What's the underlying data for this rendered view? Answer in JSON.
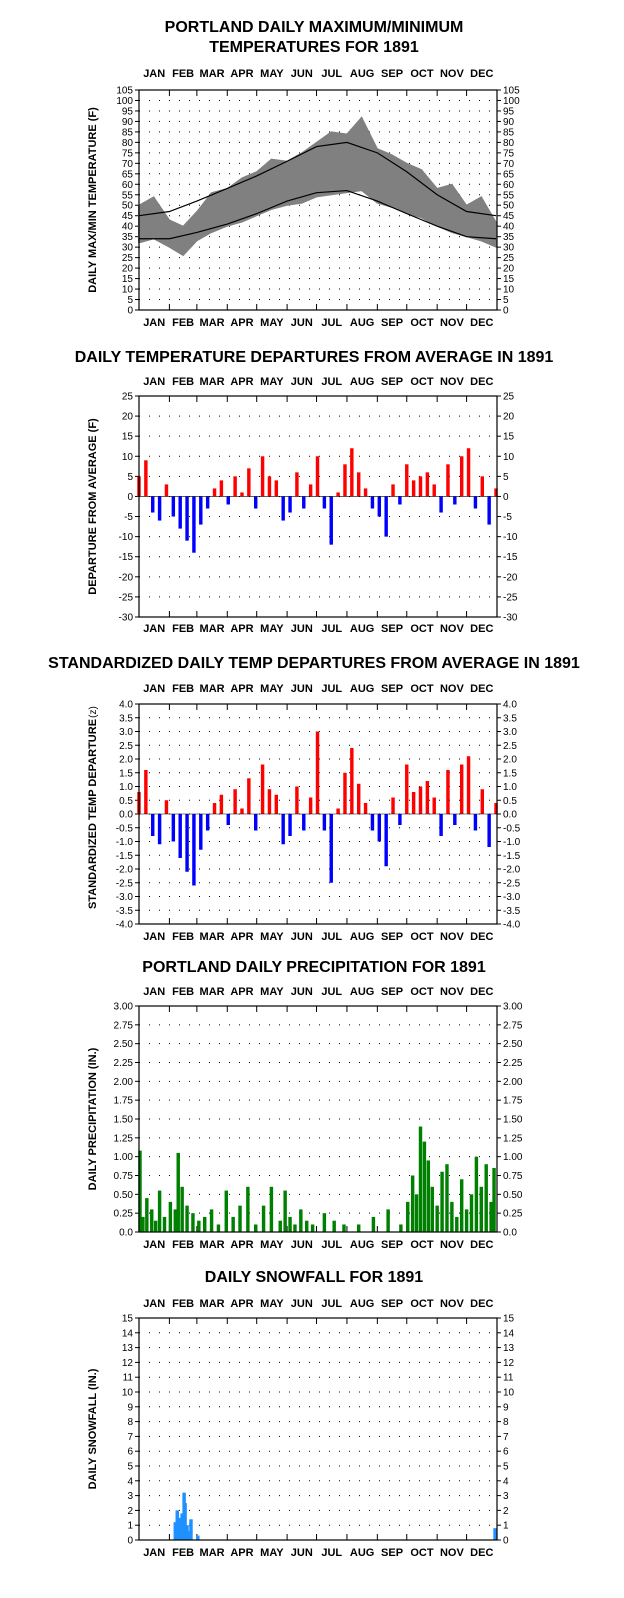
{
  "months": [
    "JAN",
    "FEB",
    "MAR",
    "APR",
    "MAY",
    "JUN",
    "JUL",
    "AUG",
    "SEP",
    "OCT",
    "NOV",
    "DEC"
  ],
  "chart_data": [
    {
      "id": "temp",
      "type": "line",
      "title_lines": [
        "PORTLAND DAILY MAXIMUM/MINIMUM",
        "TEMPERATURES FOR 1891"
      ],
      "ylabel": "DAILY MAX/MIN TEMPERATURE (F)",
      "ylim": [
        0,
        105
      ],
      "yticks": [
        0,
        5,
        10,
        15,
        20,
        25,
        30,
        35,
        40,
        45,
        50,
        55,
        60,
        65,
        70,
        75,
        80,
        85,
        90,
        95,
        100,
        105
      ],
      "grid": true,
      "colors": {
        "band": "#808080",
        "normals": "#000000"
      },
      "series": [
        {
          "kind": "normal_max",
          "x": [
            1,
            32,
            60,
            91,
            121,
            152,
            182,
            213,
            244,
            274,
            305,
            335,
            365
          ],
          "y": [
            45,
            47,
            52,
            58,
            64,
            71,
            78,
            80,
            75,
            66,
            55,
            47,
            45
          ]
        },
        {
          "kind": "normal_min",
          "x": [
            1,
            32,
            60,
            91,
            121,
            152,
            182,
            213,
            244,
            274,
            305,
            335,
            365
          ],
          "y": [
            34,
            34,
            37,
            41,
            46,
            52,
            56,
            57,
            52,
            46,
            40,
            35,
            34
          ]
        },
        {
          "kind": "observed_max",
          "x": [
            1,
            16,
            32,
            46,
            60,
            75,
            91,
            106,
            121,
            136,
            152,
            167,
            182,
            197,
            213,
            228,
            244,
            259,
            274,
            289,
            305,
            320,
            335,
            350,
            365
          ],
          "y": [
            50,
            54,
            43,
            40,
            47,
            56,
            58,
            63,
            66,
            72,
            71,
            75,
            80,
            85,
            84,
            92,
            77,
            74,
            70,
            67,
            58,
            60,
            50,
            54,
            42
          ]
        },
        {
          "kind": "observed_min",
          "x": [
            1,
            16,
            32,
            46,
            60,
            75,
            91,
            106,
            121,
            136,
            152,
            167,
            182,
            197,
            213,
            228,
            244,
            259,
            274,
            289,
            305,
            320,
            335,
            350,
            365
          ],
          "y": [
            32,
            34,
            30,
            26,
            33,
            37,
            40,
            42,
            45,
            48,
            50,
            51,
            54,
            55,
            56,
            57,
            51,
            49,
            46,
            44,
            40,
            37,
            35,
            33,
            30
          ]
        }
      ]
    },
    {
      "id": "dep",
      "type": "bar",
      "title_lines": [
        "DAILY TEMPERATURE DEPARTURES FROM AVERAGE IN 1891"
      ],
      "ylabel": "DEPARTURE FROM AVERAGE (F)",
      "ylim": [
        -30,
        25
      ],
      "yticks": [
        -30,
        -25,
        -20,
        -15,
        -10,
        -5,
        0,
        5,
        10,
        15,
        20,
        25
      ],
      "grid": true,
      "colors": {
        "positive": "#ff0000",
        "negative": "#0000ff"
      },
      "series": [
        {
          "name": "",
          "x": [
            1,
            8,
            15,
            22,
            29,
            36,
            43,
            50,
            57,
            64,
            71,
            78,
            85,
            92,
            99,
            106,
            113,
            120,
            127,
            134,
            141,
            148,
            155,
            162,
            169,
            176,
            183,
            190,
            197,
            204,
            211,
            218,
            225,
            232,
            239,
            246,
            253,
            260,
            267,
            274,
            281,
            288,
            295,
            302,
            309,
            316,
            323,
            330,
            337,
            344,
            351,
            358,
            365
          ],
          "y": [
            5,
            9,
            -4,
            -6,
            3,
            -5,
            -8,
            -11,
            -14,
            -7,
            -3,
            2,
            4,
            -2,
            5,
            1,
            7,
            -3,
            10,
            5,
            4,
            -6,
            -4,
            6,
            -3,
            3,
            10,
            -3,
            -12,
            1,
            8,
            12,
            6,
            2,
            -3,
            -5,
            -10,
            3,
            -2,
            8,
            4,
            5,
            6,
            3,
            -4,
            8,
            -2,
            10,
            12,
            -3,
            5,
            -7,
            2
          ]
        }
      ]
    },
    {
      "id": "std",
      "type": "bar",
      "title_lines": [
        "STANDARDIZED DAILY TEMP DEPARTURES FROM AVERAGE IN 1891"
      ],
      "ylabel": "STANDARDIZED TEMP DEPARTURE",
      "ylabel_suffix": "(z)",
      "ylim": [
        -4.0,
        4.0
      ],
      "yticks": [
        -4.0,
        -3.5,
        -3.0,
        -2.5,
        -2.0,
        -1.5,
        -1.0,
        -0.5,
        0.0,
        0.5,
        1.0,
        1.5,
        2.0,
        2.5,
        3.0,
        3.5,
        4.0
      ],
      "ytick_labels": [
        "-4.0",
        "-3.5",
        "-3.0",
        "-2.5",
        "-2.0",
        "-1.5",
        "-1.0",
        "-0.5",
        "0.0",
        "0.5",
        "1.0",
        "1.5",
        "2.0",
        "2.5",
        "3.0",
        "3.5",
        "4.0"
      ],
      "grid": true,
      "colors": {
        "positive": "#ff0000",
        "negative": "#0000ff"
      },
      "series": [
        {
          "name": "",
          "x": [
            1,
            8,
            15,
            22,
            29,
            36,
            43,
            50,
            57,
            64,
            71,
            78,
            85,
            92,
            99,
            106,
            113,
            120,
            127,
            134,
            141,
            148,
            155,
            162,
            169,
            176,
            183,
            190,
            197,
            204,
            211,
            218,
            225,
            232,
            239,
            246,
            253,
            260,
            267,
            274,
            281,
            288,
            295,
            302,
            309,
            316,
            323,
            330,
            337,
            344,
            351,
            358,
            365
          ],
          "y": [
            0.8,
            1.6,
            -0.8,
            -1.1,
            0.5,
            -1.0,
            -1.6,
            -2.1,
            -2.6,
            -1.3,
            -0.6,
            0.4,
            0.7,
            -0.4,
            0.9,
            0.2,
            1.3,
            -0.6,
            1.8,
            0.9,
            0.7,
            -1.1,
            -0.8,
            1.0,
            -0.6,
            0.6,
            3.0,
            -0.6,
            -2.5,
            0.2,
            1.5,
            2.4,
            1.1,
            0.4,
            -0.6,
            -1.0,
            -1.9,
            0.6,
            -0.4,
            1.8,
            0.8,
            1.0,
            1.2,
            0.6,
            -0.8,
            1.6,
            -0.4,
            1.8,
            2.1,
            -0.6,
            0.9,
            -1.2,
            0.4
          ]
        }
      ]
    },
    {
      "id": "precip",
      "type": "bar",
      "title_lines": [
        "PORTLAND DAILY PRECIPITATION FOR 1891"
      ],
      "ylabel": "DAILY PRECIPITATION (IN.)",
      "ylim": [
        0,
        3.0
      ],
      "yticks": [
        0,
        0.25,
        0.5,
        0.75,
        1.0,
        1.25,
        1.5,
        1.75,
        2.0,
        2.25,
        2.5,
        2.75,
        3.0
      ],
      "ytick_labels": [
        "0.0",
        "0.25",
        "0.50",
        "0.75",
        "1.00",
        "1.25",
        "1.50",
        "1.75",
        "2.00",
        "2.25",
        "2.50",
        "2.75",
        "3.00"
      ],
      "grid": true,
      "colors": {
        "bars": "#008000"
      },
      "series": [
        {
          "name": "",
          "x": [
            2,
            5,
            9,
            14,
            18,
            22,
            27,
            33,
            38,
            41,
            45,
            50,
            56,
            62,
            68,
            75,
            82,
            90,
            97,
            104,
            112,
            120,
            128,
            136,
            145,
            150,
            155,
            160,
            166,
            172,
            178,
            190,
            200,
            210,
            225,
            240,
            255,
            268,
            275,
            280,
            284,
            288,
            292,
            296,
            300,
            305,
            310,
            315,
            320,
            325,
            330,
            335,
            340,
            345,
            350,
            355,
            360,
            363
          ],
          "y": [
            1.08,
            0.2,
            0.45,
            0.3,
            0.15,
            0.55,
            0.2,
            0.4,
            0.3,
            1.05,
            0.6,
            0.35,
            0.25,
            0.15,
            0.2,
            0.3,
            0.1,
            0.55,
            0.2,
            0.35,
            0.6,
            0.1,
            0.35,
            0.6,
            0.15,
            0.55,
            0.2,
            0.1,
            0.3,
            0.15,
            0.1,
            0.25,
            0.15,
            0.1,
            0.1,
            0.2,
            0.3,
            0.1,
            0.4,
            0.75,
            0.5,
            1.4,
            1.2,
            0.95,
            0.6,
            0.35,
            0.8,
            0.9,
            0.4,
            0.2,
            0.7,
            0.3,
            0.5,
            1.0,
            0.6,
            0.9,
            0.4,
            0.85
          ]
        }
      ]
    },
    {
      "id": "snow",
      "type": "bar",
      "title_lines": [
        "DAILY SNOWFALL FOR 1891"
      ],
      "ylabel": "DAILY SNOWFALL (IN.)",
      "ylim": [
        0,
        15
      ],
      "yticks": [
        0,
        1,
        2,
        3,
        4,
        5,
        6,
        7,
        8,
        9,
        10,
        11,
        12,
        13,
        14,
        15
      ],
      "grid": true,
      "colors": {
        "bars": "#1e90ff"
      },
      "series": [
        {
          "name": "",
          "x": [
            38,
            40,
            42,
            43,
            45,
            47,
            48,
            50,
            52,
            54,
            61,
            364
          ],
          "y": [
            1.2,
            2.0,
            1.5,
            0.8,
            1.8,
            3.2,
            2.5,
            1.0,
            0.6,
            1.4,
            0.3,
            0.8
          ]
        }
      ]
    }
  ]
}
